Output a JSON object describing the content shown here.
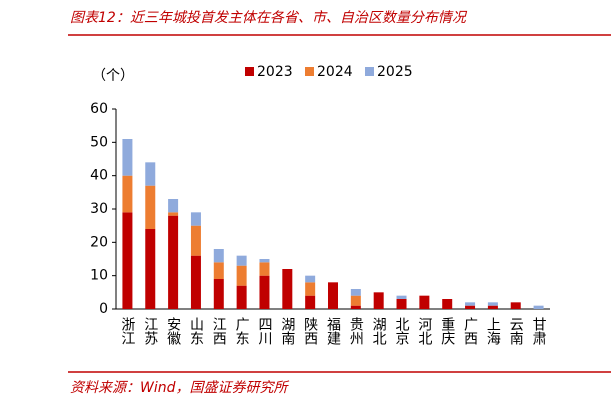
{
  "header": "图表12：近三年城投首发主体在各省、市、自治区数量分布情况",
  "source": "资料来源：Wind，国盛证券研究所",
  "chart_data": {
    "type": "stacked-bar",
    "y_label": "（个）",
    "categories": [
      "浙江",
      "江苏",
      "安徽",
      "山东",
      "江西",
      "广东",
      "四川",
      "湖南",
      "陕西",
      "福建",
      "贵州",
      "湖北",
      "北京",
      "河北",
      "重庆",
      "广西",
      "上海",
      "云南",
      "甘肃"
    ],
    "series": [
      {
        "name": "2023",
        "color": "#c00000",
        "values": [
          29,
          24,
          28,
          16,
          9,
          7,
          10,
          12,
          4,
          8,
          1,
          5,
          3,
          4,
          3,
          1,
          1,
          2,
          0
        ]
      },
      {
        "name": "2024",
        "color": "#ed7d31",
        "values": [
          11,
          13,
          1,
          9,
          5,
          6,
          4,
          0,
          4,
          0,
          3,
          0,
          0,
          0,
          0,
          0,
          0,
          0,
          0
        ]
      },
      {
        "name": "2025",
        "color": "#8faadc",
        "values": [
          11,
          7,
          4,
          4,
          4,
          3,
          1,
          0,
          2,
          0,
          2,
          0,
          1,
          0,
          0,
          1,
          1,
          0,
          1
        ]
      }
    ],
    "ylim": [
      0,
      60
    ],
    "yticks": [
      0,
      10,
      20,
      30,
      40,
      50,
      60
    ],
    "legend": "top"
  }
}
